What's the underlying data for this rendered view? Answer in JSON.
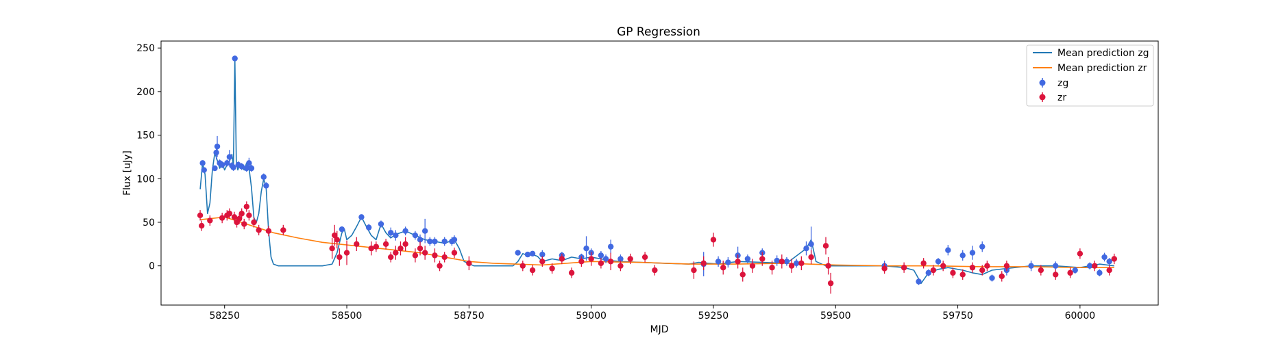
{
  "chart_data": {
    "type": "scatter",
    "title": "GP Regression",
    "xlabel": "MJD",
    "ylabel": "Flux [uJy]",
    "xlim": [
      58120,
      60160
    ],
    "ylim": [
      -45,
      258
    ],
    "xticks": [
      58250,
      58500,
      58750,
      59000,
      59250,
      59500,
      59750,
      60000
    ],
    "yticks": [
      0,
      50,
      100,
      150,
      200,
      250
    ],
    "legend_position": "top-right",
    "colors": {
      "zg_line": "#1f77b4",
      "zr_line": "#ff7f0e",
      "zg_points": "#4169e1",
      "zr_points": "#dc143c"
    },
    "lines": [
      {
        "name": "Mean prediction zg",
        "x": [
          58200,
          58205,
          58210,
          58215,
          58220,
          58225,
          58230,
          58240,
          58245,
          58250,
          58255,
          58260,
          58265,
          58268,
          58271,
          58274,
          58277,
          58280,
          58285,
          58290,
          58295,
          58300,
          58305,
          58310,
          58315,
          58320,
          58325,
          58330,
          58335,
          58340,
          58345,
          58350,
          58360,
          58400,
          58450,
          58470,
          58480,
          58490,
          58495,
          58500,
          58510,
          58520,
          58530,
          58540,
          58550,
          58560,
          58570,
          58580,
          58590,
          58600,
          58620,
          58640,
          58660,
          58680,
          58700,
          58720,
          58730,
          58740,
          58760,
          58800,
          58840,
          58850,
          58860,
          58870,
          58880,
          58890,
          58900,
          58920,
          58940,
          58960,
          58980,
          59000,
          59040,
          59060,
          59100,
          59150,
          59200,
          59220,
          59240,
          59260,
          59300,
          59350,
          59400,
          59440,
          59450,
          59460,
          59480,
          59550,
          59600,
          59640,
          59660,
          59675,
          59690,
          59710,
          59730,
          59760,
          59780,
          59800,
          59820,
          59850,
          59900,
          59950,
          60000,
          60020,
          60040,
          60070
        ],
        "y": [
          88,
          118,
          105,
          60,
          72,
          110,
          130,
          112,
          118,
          110,
          116,
          120,
          128,
          115,
          238,
          120,
          110,
          115,
          114,
          110,
          118,
          112,
          90,
          55,
          50,
          60,
          85,
          100,
          90,
          40,
          10,
          2,
          0,
          0,
          0,
          2,
          15,
          38,
          42,
          30,
          35,
          45,
          56,
          45,
          35,
          30,
          48,
          38,
          32,
          36,
          40,
          35,
          30,
          28,
          26,
          30,
          20,
          5,
          0,
          0,
          0,
          5,
          14,
          12,
          13,
          11,
          5,
          8,
          6,
          10,
          8,
          10,
          6,
          5,
          4,
          3,
          2,
          4,
          3,
          2,
          5,
          4,
          3,
          20,
          30,
          5,
          0,
          0,
          0,
          -2,
          -5,
          -20,
          -8,
          -4,
          -2,
          -5,
          -8,
          -10,
          -5,
          -3,
          0,
          0,
          -2,
          0,
          2,
          0
        ]
      },
      {
        "name": "Mean prediction zr",
        "x": [
          58200,
          58250,
          58300,
          58350,
          58400,
          58450,
          58500,
          58550,
          58600,
          58650,
          58700,
          58750,
          58800,
          58900,
          59000,
          59100,
          59200,
          59300,
          59400,
          59500,
          59600,
          59700,
          59800,
          59900,
          60000,
          60070
        ],
        "y": [
          53,
          56,
          47,
          38,
          32,
          27,
          24,
          21,
          18,
          15,
          10,
          5,
          3,
          1,
          5,
          4,
          2,
          2,
          3,
          1,
          0,
          0,
          -1,
          -1,
          -2,
          -2
        ]
      }
    ],
    "series": [
      {
        "name": "zg",
        "x": [
          58205,
          58208,
          58230,
          58233,
          58235,
          58240,
          58245,
          58255,
          58260,
          58265,
          58268,
          58271,
          58278,
          58285,
          58295,
          58300,
          58305,
          58330,
          58335,
          58490,
          58530,
          58545,
          58570,
          58590,
          58600,
          58620,
          58640,
          58650,
          58660,
          58670,
          58680,
          58700,
          58715,
          58720,
          58850,
          58870,
          58880,
          58900,
          58940,
          58980,
          58990,
          59000,
          59020,
          59030,
          59040,
          59060,
          59230,
          59260,
          59280,
          59300,
          59320,
          59350,
          59380,
          59400,
          59420,
          59440,
          59450,
          59600,
          59670,
          59690,
          59710,
          59730,
          59760,
          59780,
          59800,
          59820,
          59850,
          59900,
          59950,
          59990,
          60020,
          60040,
          60050,
          60060
        ],
        "y": [
          118,
          110,
          112,
          130,
          137,
          118,
          116,
          118,
          125,
          115,
          113,
          238,
          116,
          114,
          112,
          118,
          112,
          102,
          92,
          42,
          56,
          44,
          48,
          38,
          35,
          40,
          35,
          30,
          40,
          28,
          28,
          28,
          28,
          30,
          15,
          13,
          14,
          13,
          12,
          10,
          20,
          15,
          12,
          8,
          22,
          8,
          2,
          5,
          4,
          12,
          8,
          15,
          6,
          5,
          3,
          20,
          25,
          0,
          -18,
          -8,
          5,
          18,
          12,
          15,
          22,
          -14,
          -5,
          0,
          0,
          -5,
          0,
          -8,
          10,
          5
        ],
        "err": [
          3,
          3,
          3,
          8,
          12,
          4,
          4,
          4,
          8,
          4,
          4,
          2,
          4,
          4,
          4,
          6,
          4,
          4,
          4,
          3,
          3,
          4,
          4,
          6,
          6,
          5,
          5,
          6,
          14,
          5,
          5,
          5,
          5,
          5,
          3,
          3,
          3,
          5,
          4,
          4,
          14,
          5,
          5,
          5,
          8,
          5,
          14,
          6,
          6,
          10,
          5,
          5,
          6,
          5,
          5,
          8,
          20,
          6,
          4,
          4,
          4,
          6,
          6,
          8,
          6,
          4,
          6,
          6,
          5,
          4,
          4,
          4,
          5,
          4
        ]
      },
      {
        "name": "zr",
        "x": [
          58200,
          58203,
          58220,
          58245,
          58255,
          58260,
          58270,
          58275,
          58280,
          58285,
          58290,
          58295,
          58300,
          58310,
          58320,
          58340,
          58370,
          58470,
          58475,
          58480,
          58485,
          58500,
          58520,
          58550,
          58560,
          58580,
          58590,
          58600,
          58610,
          58620,
          58640,
          58650,
          58660,
          58680,
          58690,
          58700,
          58720,
          58750,
          58860,
          58880,
          58900,
          58920,
          58940,
          58960,
          58980,
          59000,
          59020,
          59040,
          59060,
          59080,
          59110,
          59130,
          59210,
          59230,
          59250,
          59270,
          59300,
          59310,
          59330,
          59350,
          59370,
          59390,
          59410,
          59430,
          59450,
          59480,
          59485,
          59490,
          59600,
          59640,
          59680,
          59700,
          59720,
          59740,
          59760,
          59780,
          59800,
          59810,
          59840,
          59850,
          59920,
          59950,
          59980,
          60000,
          60030,
          60060,
          60070
        ],
        "y": [
          58,
          46,
          52,
          55,
          58,
          60,
          56,
          50,
          54,
          60,
          48,
          68,
          58,
          50,
          41,
          40,
          41,
          20,
          35,
          30,
          10,
          15,
          25,
          20,
          22,
          25,
          10,
          15,
          20,
          25,
          12,
          20,
          15,
          12,
          0,
          10,
          15,
          3,
          0,
          -5,
          5,
          -3,
          8,
          -8,
          5,
          8,
          3,
          5,
          0,
          8,
          10,
          -5,
          -5,
          3,
          30,
          -2,
          5,
          -10,
          0,
          8,
          -2,
          5,
          0,
          3,
          10,
          23,
          0,
          -20,
          -3,
          -2,
          3,
          -5,
          0,
          -8,
          -10,
          -2,
          -5,
          0,
          -12,
          0,
          -5,
          -10,
          -8,
          14,
          0,
          -5,
          8
        ],
        "err": [
          6,
          6,
          6,
          6,
          6,
          6,
          6,
          6,
          6,
          6,
          6,
          6,
          6,
          6,
          6,
          6,
          6,
          12,
          12,
          10,
          10,
          14,
          8,
          8,
          6,
          6,
          6,
          8,
          8,
          8,
          8,
          8,
          8,
          8,
          6,
          6,
          6,
          8,
          6,
          6,
          6,
          6,
          6,
          6,
          6,
          8,
          6,
          10,
          6,
          6,
          6,
          6,
          10,
          8,
          8,
          8,
          8,
          8,
          8,
          8,
          8,
          8,
          8,
          8,
          8,
          10,
          10,
          12,
          6,
          6,
          6,
          6,
          6,
          6,
          6,
          6,
          6,
          6,
          6,
          6,
          6,
          6,
          6,
          6,
          6,
          6,
          6
        ]
      }
    ]
  }
}
